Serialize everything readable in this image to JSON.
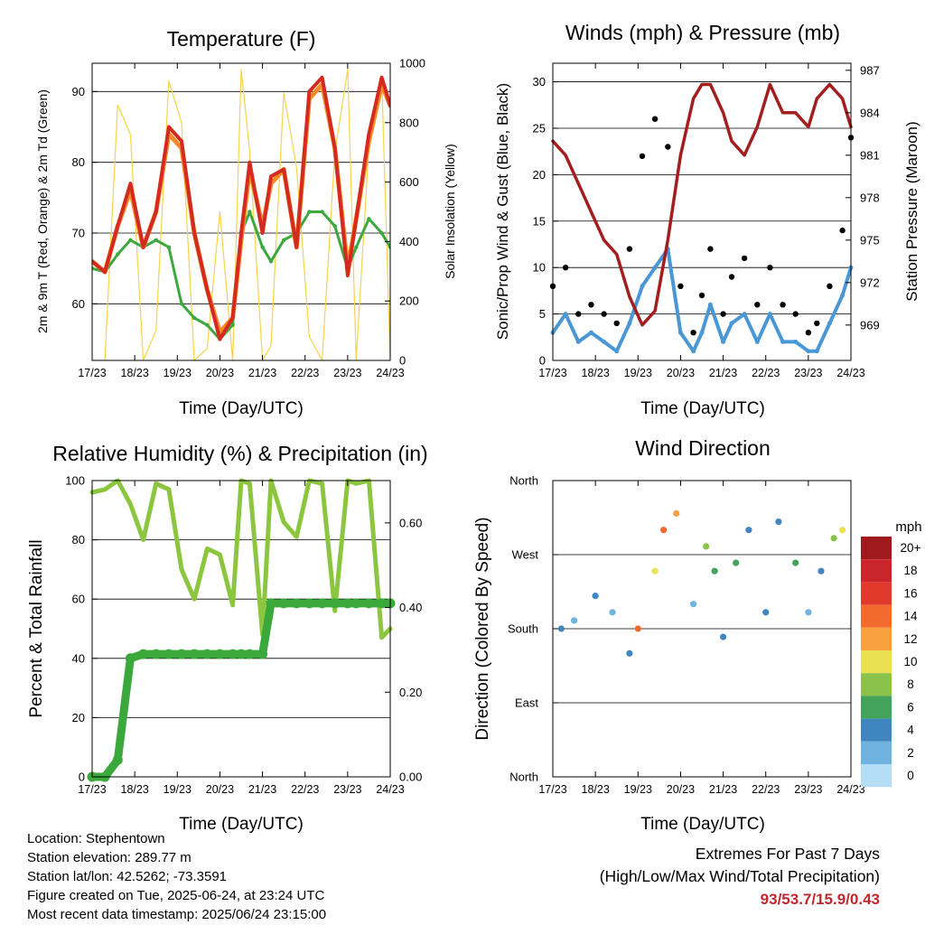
{
  "x_ticks": [
    "17/23",
    "18/23",
    "19/23",
    "20/23",
    "21/23",
    "22/23",
    "23/23",
    "24/23"
  ],
  "x_label": "Time (Day/UTC)",
  "panels": {
    "temperature": {
      "title": "Temperature (F)",
      "ylabel_left": "2m & 9m T (Red, Orange) & 2m Td (Green)",
      "ylabel_right": "Solar Insolation (Yellow)",
      "yticks_left": [
        "60",
        "70",
        "80",
        "90"
      ],
      "yticks_right": [
        "0",
        "200",
        "400",
        "600",
        "800",
        "1000"
      ]
    },
    "winds": {
      "title": "Winds (mph) & Pressure (mb)",
      "ylabel_left": "Sonic/Prop Wind & Gust (Blue, Black)",
      "ylabel_right": "Station Pressure (Maroon)",
      "yticks_left": [
        "0",
        "5",
        "10",
        "15",
        "20",
        "25",
        "30"
      ],
      "yticks_right": [
        "969",
        "972",
        "975",
        "978",
        "981",
        "984",
        "987"
      ]
    },
    "humidity": {
      "title": "Relative Humidity (%) & Precipitation (in)",
      "ylabel_left": "Percent & Total Rainfall",
      "yticks_left": [
        "0",
        "20",
        "40",
        "60",
        "80",
        "100"
      ],
      "yticks_right": [
        "0.00",
        "0.20",
        "0.40",
        "0.60"
      ]
    },
    "direction": {
      "title": "Wind Direction",
      "ylabel_left": "Direction (Colored By Speed)",
      "yticks_left": [
        "North",
        "East",
        "South",
        "West",
        "North"
      ],
      "colorbar_unit": "mph",
      "colorbar_labels": [
        "20+",
        "18",
        "16",
        "14",
        "12",
        "10",
        "8",
        "6",
        "4",
        "2",
        "0"
      ],
      "colorbar_colors": [
        "#9e1a1d",
        "#c9252b",
        "#e03a2c",
        "#f26a2e",
        "#f9a03f",
        "#ebe052",
        "#8bc34a",
        "#43a35a",
        "#3f86c1",
        "#6fb3e0",
        "#b4def5"
      ]
    }
  },
  "chart_data": [
    {
      "type": "line",
      "title": "Temperature (F)",
      "xlabel": "Time (Day/UTC)",
      "ylabel": "2m & 9m T (Red, Orange) & 2m Td (Green)",
      "ylabel_right": "Solar Insolation (Yellow)",
      "x": [
        0,
        0.3,
        0.6,
        0.9,
        1.2,
        1.5,
        1.8,
        2.1,
        2.4,
        2.7,
        3.0,
        3.3,
        3.5,
        3.7,
        4.0,
        4.2,
        4.5,
        4.8,
        5.1,
        5.4,
        5.7,
        6.0,
        6.2,
        6.5,
        6.8,
        7.0
      ],
      "ylim": [
        52,
        94
      ],
      "ylim_right": [
        0,
        1000
      ],
      "series": [
        {
          "name": "2m T",
          "axis": "left",
          "color": "#d42a20",
          "values": [
            66,
            64.5,
            71,
            77,
            68,
            73,
            85,
            83,
            70,
            62,
            55,
            58,
            70,
            80,
            70,
            78,
            79,
            68,
            90,
            92,
            82,
            64,
            72,
            84,
            92,
            88
          ]
        },
        {
          "name": "9m T",
          "axis": "left",
          "color": "#f58a2a",
          "values": [
            66,
            64.5,
            71,
            76,
            68,
            73,
            84,
            82,
            70,
            62,
            56,
            58,
            69,
            79,
            71,
            77,
            79,
            68,
            89,
            91,
            82,
            65,
            72,
            83,
            91,
            88
          ]
        },
        {
          "name": "2m Td",
          "axis": "left",
          "color": "#3da83e",
          "values": [
            65,
            64.5,
            67,
            69,
            68,
            69,
            68,
            60,
            58,
            57,
            55,
            57,
            70,
            73,
            68,
            66,
            69,
            70,
            73,
            73,
            71,
            65,
            68,
            72,
            70,
            68
          ]
        },
        {
          "name": "Solar Insolation",
          "axis": "right",
          "color": "#f6d34a",
          "values": [
            0,
            0,
            860,
            760,
            0,
            100,
            940,
            800,
            0,
            40,
            500,
            0,
            980,
            700,
            0,
            50,
            900,
            650,
            80,
            0,
            700,
            980,
            0,
            720,
            950,
            0
          ]
        }
      ]
    },
    {
      "type": "scatter",
      "title": "Winds (mph) & Pressure (mb)",
      "xlabel": "Time (Day/UTC)",
      "ylabel": "Sonic/Prop Wind & Gust (Blue, Black)",
      "ylabel_right": "Station Pressure (Maroon)",
      "x": [
        0,
        0.3,
        0.6,
        0.9,
        1.2,
        1.5,
        1.8,
        2.1,
        2.4,
        2.7,
        3.0,
        3.3,
        3.5,
        3.7,
        4.0,
        4.2,
        4.5,
        4.8,
        5.1,
        5.4,
        5.7,
        6.0,
        6.2,
        6.5,
        6.8,
        7.0
      ],
      "ylim": [
        0,
        32
      ],
      "ylim_right": [
        966.5,
        987.5
      ],
      "series": [
        {
          "name": "Gust",
          "axis": "left",
          "color": "#000000",
          "values": [
            8,
            10,
            5,
            6,
            5,
            4,
            12,
            22,
            26,
            23,
            8,
            3,
            7,
            12,
            5,
            9,
            11,
            6,
            10,
            6,
            5,
            3,
            4,
            8,
            14,
            24
          ]
        },
        {
          "name": "Wind",
          "axis": "left",
          "color": "#4a97d6",
          "values": [
            3,
            5,
            2,
            3,
            2,
            1,
            4,
            8,
            10,
            12,
            3,
            1,
            3,
            6,
            2,
            4,
            5,
            2,
            5,
            2,
            2,
            1,
            1,
            4,
            7,
            10
          ]
        },
        {
          "name": "Station Pressure",
          "axis": "right",
          "color": "#a31f1f",
          "values": [
            982,
            981,
            979,
            977,
            975,
            974,
            971,
            969,
            970,
            975,
            981,
            985,
            986,
            986,
            984,
            982,
            981,
            983,
            986,
            984,
            984,
            983,
            985,
            986,
            985,
            983
          ]
        }
      ]
    },
    {
      "type": "line",
      "title": "Relative Humidity (%) & Precipitation (in)",
      "xlabel": "Time (Day/UTC)",
      "ylabel": "Percent & Total Rainfall",
      "x": [
        0,
        0.3,
        0.6,
        0.9,
        1.2,
        1.5,
        1.8,
        2.1,
        2.4,
        2.7,
        3.0,
        3.3,
        3.5,
        3.7,
        4.0,
        4.2,
        4.5,
        4.8,
        5.1,
        5.4,
        5.7,
        6.0,
        6.2,
        6.5,
        6.8,
        7.0
      ],
      "ylim": [
        0,
        100
      ],
      "ylim_right": [
        0,
        0.7
      ],
      "series": [
        {
          "name": "Relative Humidity",
          "axis": "left",
          "color": "#8cc63f",
          "values": [
            96,
            97,
            100,
            92,
            80,
            99,
            97,
            70,
            60,
            77,
            75,
            58,
            100,
            99,
            48,
            100,
            86,
            81,
            100,
            99,
            56,
            100,
            99,
            100,
            47,
            50
          ]
        },
        {
          "name": "Total Precipitation",
          "axis": "right",
          "color": "#3aa83a",
          "values": [
            0,
            0,
            0.04,
            0.28,
            0.29,
            0.29,
            0.29,
            0.29,
            0.29,
            0.29,
            0.29,
            0.29,
            0.29,
            0.29,
            0.29,
            0.41,
            0.41,
            0.41,
            0.41,
            0.41,
            0.41,
            0.41,
            0.41,
            0.41,
            0.41,
            0.41
          ]
        }
      ]
    },
    {
      "type": "scatter",
      "title": "Wind Direction",
      "xlabel": "Time (Day/UTC)",
      "ylabel": "Direction (Colored By Speed)",
      "x": [
        0.2,
        0.5,
        1.0,
        1.4,
        1.8,
        2.0,
        2.4,
        2.6,
        2.9,
        3.3,
        3.6,
        3.8,
        4.0,
        4.3,
        4.6,
        5.0,
        5.3,
        5.7,
        6.0,
        6.3,
        6.6,
        6.8
      ],
      "values": [
        180,
        190,
        220,
        200,
        150,
        180,
        250,
        300,
        320,
        210,
        280,
        250,
        170,
        260,
        300,
        200,
        310,
        260,
        200,
        250,
        290,
        300
      ],
      "speeds": [
        3,
        2,
        4,
        2,
        3,
        14,
        10,
        14,
        11,
        2,
        7,
        5,
        3,
        6,
        4,
        3,
        4,
        6,
        2,
        4,
        8,
        10
      ],
      "ylim": [
        0,
        360
      ],
      "colorbar_unit": "mph"
    }
  ],
  "info": {
    "location": "Location: Stephentown",
    "elevation": "Station elevation: 289.77 m",
    "latlon": "Station lat/lon: 42.5262; -73.3591",
    "created": "Figure created on Tue, 2025-06-24, at 23:24 UTC",
    "recent": "Most recent data timestamp: 2025/06/24 23:15:00"
  },
  "extremes": {
    "title": "Extremes For Past 7 Days",
    "subtitle": "(High/Low/Max Wind/Total Precipitation)",
    "values": "93/53.7/15.9/0.43"
  }
}
